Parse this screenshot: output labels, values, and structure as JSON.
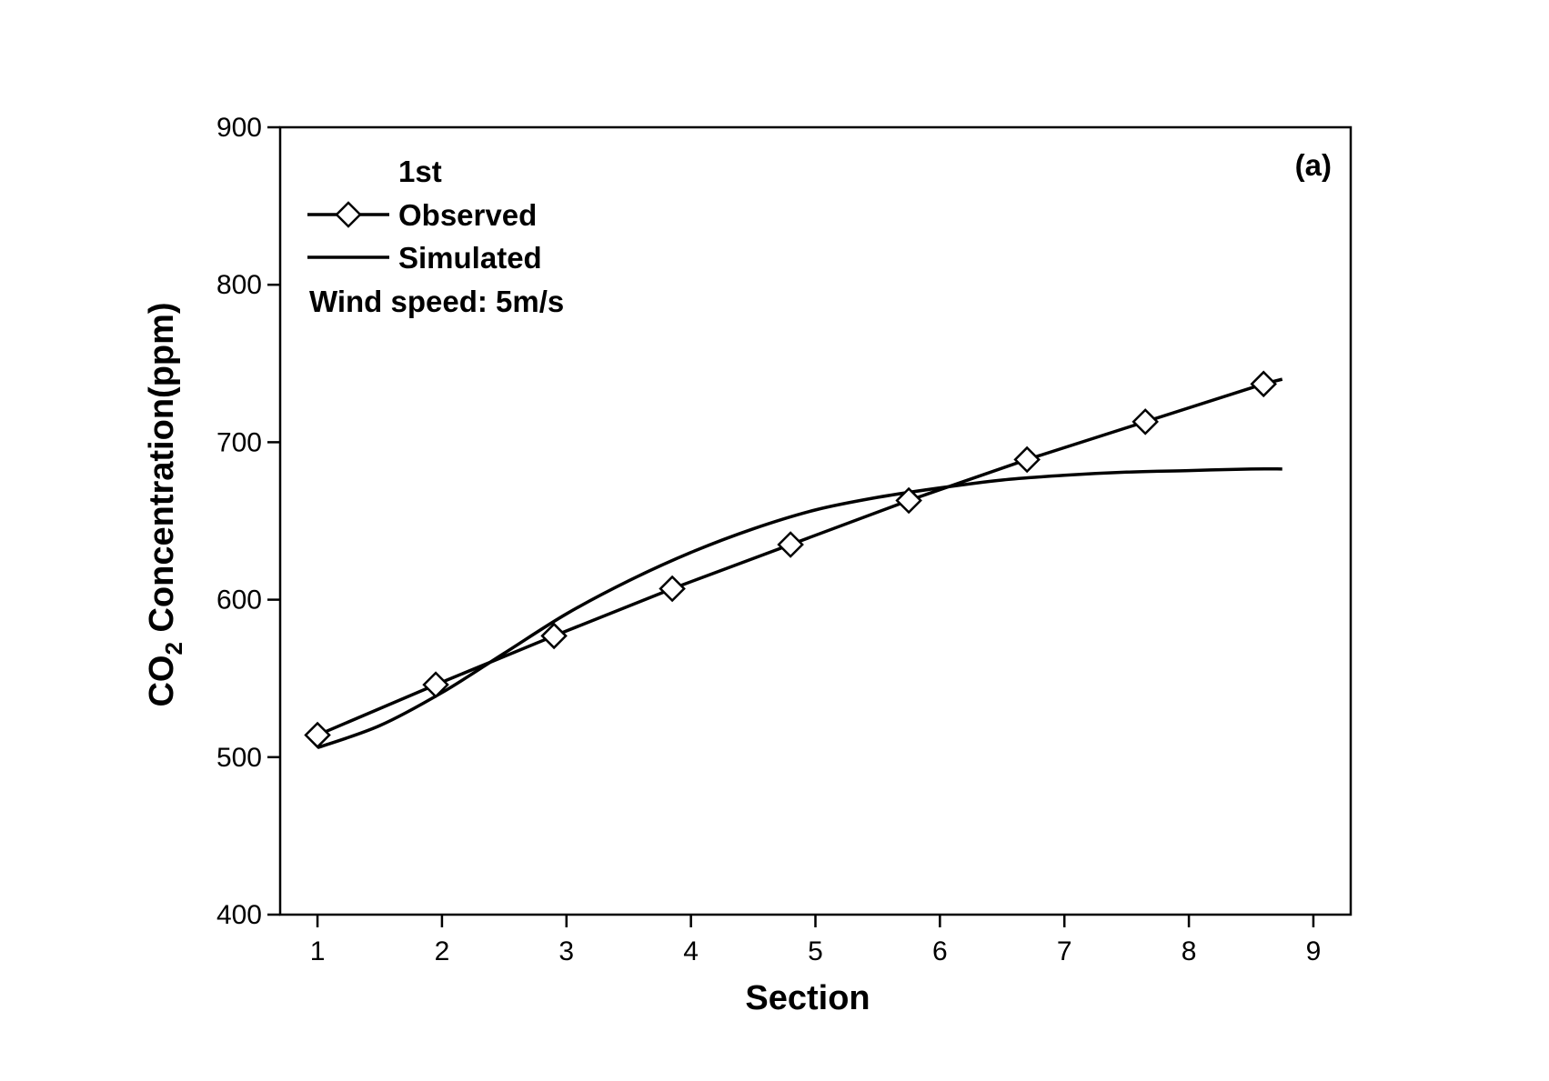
{
  "chart_data": {
    "type": "line",
    "panel_label": "(a)",
    "xlabel": "Section",
    "ylabel_prefix": "CO",
    "ylabel_subscript": "2",
    "ylabel_suffix": " Concentration(ppm)",
    "xlim": [
      0.7,
      9.3
    ],
    "ylim": [
      400,
      900
    ],
    "xticks": [
      1,
      2,
      3,
      4,
      5,
      6,
      7,
      8,
      9
    ],
    "yticks": [
      400,
      500,
      600,
      700,
      800,
      900
    ],
    "legend": {
      "placement": "top-left",
      "title": "1st",
      "note": "Wind speed: 5m/s"
    },
    "series": [
      {
        "name": "Observed",
        "marker": "diamond",
        "x": [
          1.0,
          1.95,
          2.9,
          3.85,
          4.8,
          5.75,
          6.7,
          7.65,
          8.6
        ],
        "y": [
          514,
          546,
          577,
          607,
          635,
          663,
          689,
          713,
          737
        ],
        "line_end": {
          "x": 8.75,
          "y": 740
        }
      },
      {
        "name": "Simulated",
        "marker": "none",
        "x": [
          1.0,
          1.5,
          2.0,
          2.5,
          3.0,
          3.5,
          4.0,
          4.5,
          5.0,
          5.5,
          6.0,
          6.5,
          7.0,
          7.5,
          8.0,
          8.5,
          8.75
        ],
        "y": [
          506,
          520,
          541,
          566,
          591,
          612,
          630,
          645,
          657,
          665,
          671,
          676,
          679,
          681,
          682,
          683,
          683
        ]
      }
    ],
    "colors": {
      "line": "#000000",
      "marker_fill": "#ffffff"
    }
  }
}
